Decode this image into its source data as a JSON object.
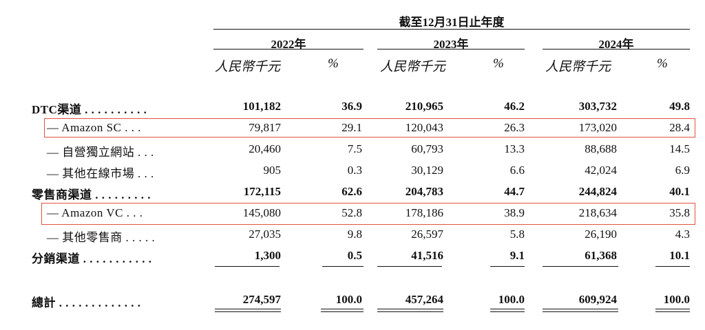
{
  "header": {
    "super": "截至12月31日止年度",
    "years": [
      "2022年",
      "2023年",
      "2024年"
    ],
    "unit_amount": "人民幣千元",
    "unit_pct": "%"
  },
  "rows": [
    {
      "label": "DTC渠道 . . . . . . . . . .",
      "bold": true,
      "sub": false,
      "values": [
        "101,182",
        "36.9",
        "210,965",
        "46.2",
        "303,732",
        "49.8"
      ]
    },
    {
      "label": "— Amazon SC . . .",
      "bold": false,
      "sub": true,
      "highlight": true,
      "values": [
        "79,817",
        "29.1",
        "120,043",
        "26.3",
        "173,020",
        "28.4"
      ]
    },
    {
      "label": "— 自營獨立網站 . . .",
      "bold": false,
      "sub": true,
      "values": [
        "20,460",
        "7.5",
        "60,793",
        "13.3",
        "88,688",
        "14.5"
      ]
    },
    {
      "label": "— 其他在線市場 . . .",
      "bold": false,
      "sub": true,
      "values": [
        "905",
        "0.3",
        "30,129",
        "6.6",
        "42,024",
        "6.9"
      ]
    },
    {
      "label": "零售商渠道 . . . . . . . . .",
      "bold": true,
      "sub": false,
      "values": [
        "172,115",
        "62.6",
        "204,783",
        "44.7",
        "244,824",
        "40.1"
      ]
    },
    {
      "label": "— Amazon VC . . .",
      "bold": false,
      "sub": true,
      "highlight": true,
      "values": [
        "145,080",
        "52.8",
        "178,186",
        "38.9",
        "218,634",
        "35.8"
      ]
    },
    {
      "label": "— 其他零售商 . . . . .",
      "bold": false,
      "sub": true,
      "values": [
        "27,035",
        "9.8",
        "26,597",
        "5.8",
        "26,190",
        "4.3"
      ]
    },
    {
      "label": "分銷渠道 . . . . . . . . . . .",
      "bold": true,
      "sub": false,
      "values": [
        "1,300",
        "0.5",
        "41,516",
        "9.1",
        "61,368",
        "10.1"
      ]
    }
  ],
  "total": {
    "label": "總計 . . . . . . . . . . . . .",
    "values": [
      "274,597",
      "100.0",
      "457,264",
      "100.0",
      "609,924",
      "100.0"
    ]
  },
  "colors": {
    "highlight_border": "#e0523e",
    "text": "#111111"
  }
}
